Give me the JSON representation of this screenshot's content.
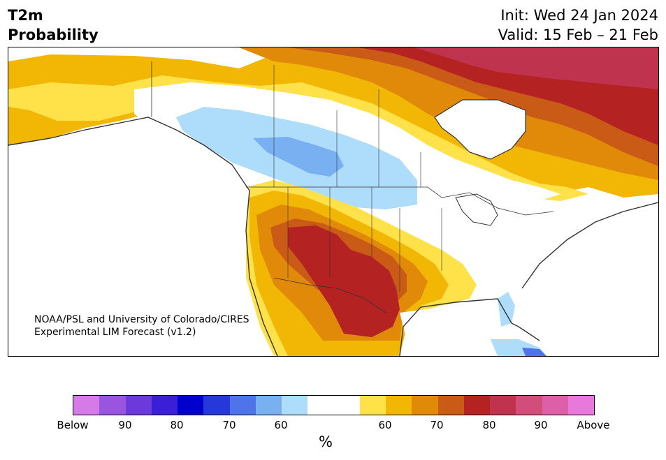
{
  "header": {
    "title_line1": "T2m",
    "title_line2": "Probability",
    "init": "Init: Wed 24 Jan 2024",
    "valid": "Valid: 15 Feb – 21 Feb"
  },
  "credit": {
    "line1": "NOAA/PSL and University of Colorado/CIRES",
    "line2": "Experimental LIM Forecast (v1.2)"
  },
  "colorbar": {
    "colors": [
      "#d67ae8",
      "#9a55e0",
      "#6c3ada",
      "#3a1fd6",
      "#0000cc",
      "#2638da",
      "#4f73e8",
      "#78b0f2",
      "#aedcfb",
      "#ffffff",
      "#ffffff",
      "#ffe14a",
      "#f2b705",
      "#e18a0a",
      "#c95b17",
      "#b42222",
      "#c0334f",
      "#d24d7a",
      "#dd5fa8",
      "#e878dc"
    ],
    "tick_labels": [
      "Below",
      "90",
      "80",
      "70",
      "60",
      "60",
      "70",
      "80",
      "90",
      "Above"
    ],
    "unit": "%"
  },
  "map_colors": {
    "water": "#ffffff",
    "p50_60_warm": "#ffe14a",
    "p60_65_warm": "#f2b705",
    "p65_70_warm": "#e18a0a",
    "p70_75_warm": "#c95b17",
    "p75_80_warm": "#b42222",
    "p80_85_warm": "#c0334f",
    "p50_60_cold": "#aedcfb",
    "p60_65_cold": "#78b0f2",
    "coast": "#333333"
  }
}
